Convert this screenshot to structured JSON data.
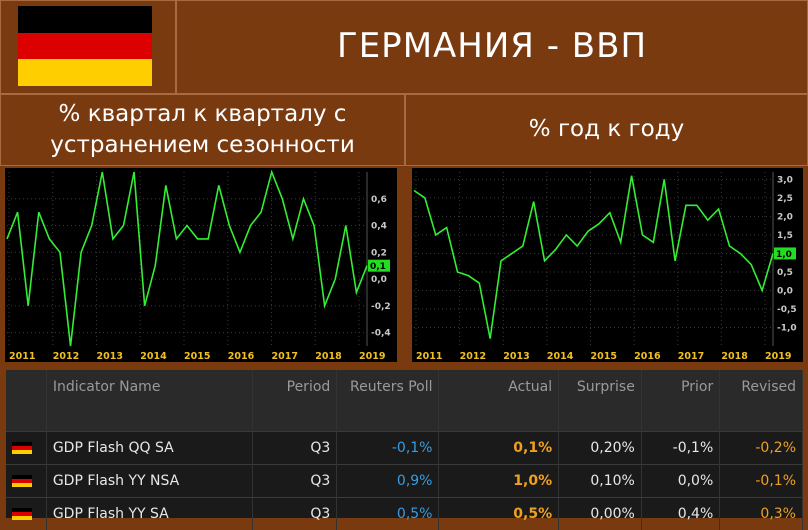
{
  "title": "ГЕРМАНИЯ - ВВП",
  "flag_colors": [
    "#000000",
    "#dd0000",
    "#ffce00"
  ],
  "subtitles": {
    "qoq": "% квартал к кварталу с устранением сезонности",
    "yoy": "% год к году"
  },
  "chart_data": [
    {
      "type": "line",
      "title": "% квартал к кварталу с устранением сезонности",
      "color": "#33ee33",
      "x_tick_labels": [
        "2011",
        "2012",
        "2013",
        "2014",
        "2015",
        "2016",
        "2017",
        "2018",
        "2019"
      ],
      "y_tick_labels": [
        "0,6",
        "0,4",
        "0,2",
        "0,0",
        "-0,2",
        "-0,4"
      ],
      "ylim": [
        -0.5,
        0.8
      ],
      "last_value_label": "0,1",
      "values": [
        0.3,
        0.5,
        -0.2,
        0.5,
        0.3,
        0.2,
        -0.5,
        0.2,
        0.4,
        0.8,
        0.3,
        0.4,
        0.8,
        -0.2,
        0.1,
        0.7,
        0.3,
        0.4,
        0.3,
        0.3,
        0.7,
        0.4,
        0.2,
        0.4,
        0.5,
        0.8,
        0.6,
        0.3,
        0.6,
        0.4,
        -0.2,
        0.0,
        0.4,
        -0.1,
        0.1
      ]
    },
    {
      "type": "line",
      "title": "% год к году",
      "color": "#33ee33",
      "x_tick_labels": [
        "2011",
        "2012",
        "2013",
        "2014",
        "2015",
        "2016",
        "2017",
        "2018",
        "2019"
      ],
      "y_tick_labels": [
        "3,0",
        "2,5",
        "2,0",
        "1,5",
        "1,0",
        "0,5",
        "0,0",
        "-0,5",
        "-1,0"
      ],
      "ylim": [
        -1.5,
        3.2
      ],
      "last_value_label": "1,0",
      "values": [
        2.7,
        2.5,
        1.5,
        1.7,
        0.5,
        0.4,
        0.2,
        -1.3,
        0.8,
        1.0,
        1.2,
        2.4,
        0.8,
        1.1,
        1.5,
        1.2,
        1.6,
        1.8,
        2.1,
        1.3,
        3.1,
        1.5,
        1.3,
        3.0,
        0.8,
        2.3,
        2.3,
        1.9,
        2.2,
        1.2,
        1.0,
        0.7,
        0.0,
        1.0
      ]
    }
  ],
  "table": {
    "headers": [
      "Indicator Name",
      "Period",
      "Reuters Poll",
      "Actual",
      "Surprise",
      "Prior",
      "Revised"
    ],
    "rows": [
      {
        "name": "GDP Flash QQ SA",
        "period": "Q3",
        "poll": "-0,1%",
        "actual": "0,1%",
        "surprise": "0,20%",
        "prior": "-0,1%",
        "revised": "-0,2%"
      },
      {
        "name": "GDP Flash YY NSA",
        "period": "Q3",
        "poll": "0,9%",
        "actual": "1,0%",
        "surprise": "0,10%",
        "prior": "0,0%",
        "revised": "-0,1%"
      },
      {
        "name": "GDP Flash YY SA",
        "period": "Q3",
        "poll": "0,5%",
        "actual": "0,5%",
        "surprise": "0,00%",
        "prior": "0,4%",
        "revised": "0,3%"
      }
    ]
  }
}
